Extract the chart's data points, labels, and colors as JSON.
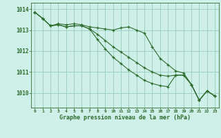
{
  "title": "Graphe pression niveau de la mer (hPa)",
  "background_color": "#cff0e8",
  "grid_color": "#99ccbb",
  "line_color": "#2d6b2d",
  "xlim": [
    -0.5,
    23.5
  ],
  "ylim": [
    1009.3,
    1014.3
  ],
  "yticks": [
    1010,
    1011,
    1012,
    1013,
    1014
  ],
  "xtick_labels": [
    "0",
    "1",
    "2",
    "3",
    "4",
    "5",
    "6",
    "7",
    "8",
    "9",
    "10",
    "11",
    "12",
    "13",
    "14",
    "15",
    "16",
    "17",
    "18",
    "19",
    "20",
    "21",
    "22",
    "23"
  ],
  "series1": [
    1013.85,
    1013.55,
    1013.2,
    1013.3,
    1013.25,
    1013.3,
    1013.25,
    1013.15,
    1013.1,
    1013.05,
    1013.0,
    1013.1,
    1013.15,
    1013.0,
    1012.85,
    1012.2,
    1011.65,
    1011.35,
    1011.05,
    1010.95,
    1010.4,
    1009.65,
    1010.1,
    1009.85
  ],
  "series2": [
    1013.85,
    1013.55,
    1013.2,
    1013.25,
    1013.15,
    1013.2,
    1013.2,
    1013.05,
    1012.8,
    1012.5,
    1012.2,
    1011.95,
    1011.7,
    1011.45,
    1011.2,
    1011.0,
    1010.85,
    1010.8,
    1010.85,
    1010.85,
    1010.4,
    1009.65,
    1010.1,
    1009.85
  ],
  "series3": [
    1013.85,
    1013.55,
    1013.2,
    1013.25,
    1013.15,
    1013.2,
    1013.2,
    1013.05,
    1012.55,
    1012.1,
    1011.7,
    1011.4,
    1011.1,
    1010.85,
    1010.6,
    1010.45,
    1010.35,
    1010.3,
    1010.85,
    1010.85,
    1010.4,
    1009.65,
    1010.1,
    1009.85
  ]
}
